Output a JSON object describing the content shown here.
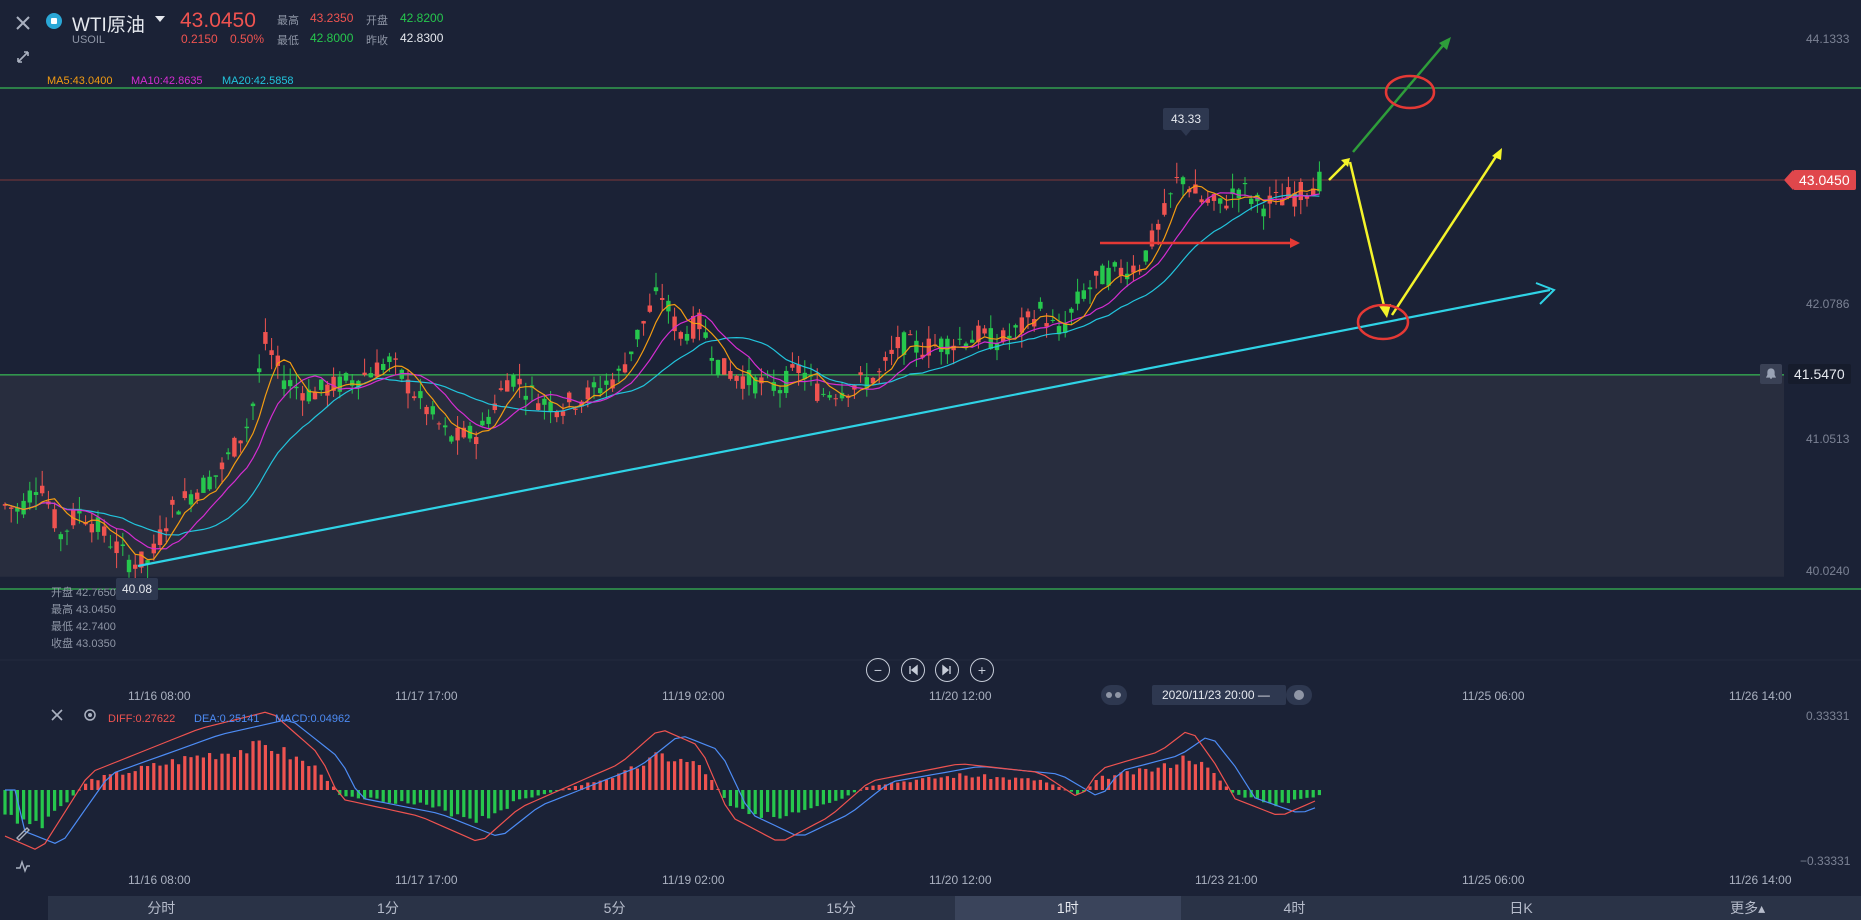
{
  "header": {
    "symbol": "WTI原油",
    "code": "USOIL",
    "price": "43.0450",
    "change": "0.2150",
    "change_pct": "0.50%",
    "high_label": "最高",
    "high_value": "43.2350",
    "open_label": "开盘",
    "open_value": "42.8200",
    "low_label": "最低",
    "low_value": "42.8000",
    "prev_close_label": "昨收",
    "prev_close_value": "42.8300"
  },
  "ma_legend": {
    "ma5": "MA5:43.0400",
    "ma10": "MA10:42.8635",
    "ma20": "MA20:42.5858"
  },
  "y_ticks": [
    "44.1333",
    "43.0450",
    "42.0786",
    "41.0513",
    "40.0240"
  ],
  "current_price_tag": "43.0450",
  "level_tag": "41.5470",
  "peak_label": "43.33",
  "low_label": "40.08",
  "ohlc_info": {
    "open": "开盘 42.7650",
    "high": "最高 43.0450",
    "low": "最低 42.7400",
    "close": "收盘 43.0350"
  },
  "x_ticks": [
    "11/16 08:00",
    "11/17 17:00",
    "11/19 02:00",
    "11/20 12:00",
    "11/23 21:00",
    "11/25 06:00",
    "11/26 14:00"
  ],
  "crosshair_time": "2020/11/23 20:00",
  "macd_legend": {
    "diff": "DIFF:0.27622",
    "dea": "DEA:0.25141",
    "macd": "MACD:0.04962"
  },
  "macd_y_ticks": [
    "0.33331",
    "−0.33331"
  ],
  "tabs": [
    {
      "label": "分时",
      "active": false
    },
    {
      "label": "1分",
      "active": false
    },
    {
      "label": "5分",
      "active": false
    },
    {
      "label": "15分",
      "active": false
    },
    {
      "label": "1时",
      "active": true
    },
    {
      "label": "4时",
      "active": false
    },
    {
      "label": "日K",
      "active": false
    },
    {
      "label": "更多▴",
      "active": false
    }
  ],
  "colors": {
    "background": "#1b2236",
    "up": "#ef5350",
    "down": "#26c74d",
    "ma5": "#f39c12",
    "ma10": "#d42dd1",
    "ma20": "#22c4dc",
    "trendline": "#2fd3e6",
    "level_line": "#3ddc5a",
    "annotation_yellow": "#f4f42a",
    "annotation_green": "#2e9e3a",
    "annotation_red": "#e53935"
  }
}
